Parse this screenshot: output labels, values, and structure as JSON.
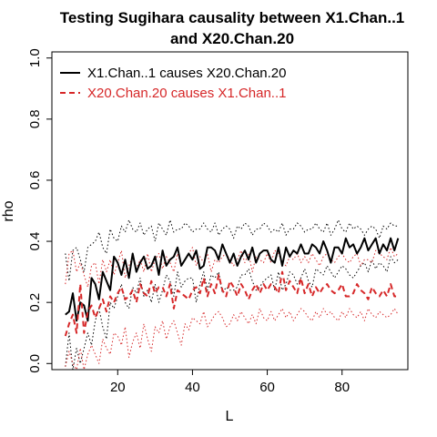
{
  "chart_data": {
    "type": "line",
    "title_lines": [
      "Testing Sugihara causality between  X1.Chan..1",
      "and X20.Chan.20"
    ],
    "xlabel": "L",
    "ylabel": "rho",
    "xlim": [
      2.4,
      97.6
    ],
    "ylim": [
      -0.02,
      1.02
    ],
    "xticks": [
      20,
      40,
      60,
      80
    ],
    "yticks": [
      0.0,
      0.2,
      0.4,
      0.6,
      0.8,
      1.0
    ],
    "xtick_labels": [
      "20",
      "40",
      "60",
      "80"
    ],
    "ytick_labels": [
      "0.0",
      "0.2",
      "0.4",
      "0.6",
      "0.8",
      "1.0"
    ],
    "legend": {
      "placement": "top-left",
      "entries": [
        {
          "label": "X1.Chan..1 causes X20.Chan.20",
          "color": "#000000",
          "dash": "solid"
        },
        {
          "label": "X20.Chan.20 causes X1.Chan..1",
          "color": "#d62728",
          "dash": "dashed"
        }
      ]
    },
    "x": [
      6,
      7,
      8,
      9,
      10,
      11,
      12,
      13,
      14,
      15,
      16,
      17,
      18,
      19,
      20,
      21,
      22,
      23,
      24,
      25,
      26,
      27,
      28,
      29,
      30,
      31,
      32,
      33,
      34,
      35,
      36,
      37,
      38,
      39,
      40,
      41,
      42,
      43,
      44,
      45,
      46,
      47,
      48,
      49,
      50,
      51,
      52,
      53,
      54,
      55,
      56,
      57,
      58,
      59,
      60,
      61,
      62,
      63,
      64,
      65,
      66,
      67,
      68,
      69,
      70,
      71,
      72,
      73,
      74,
      75,
      76,
      77,
      78,
      79,
      80,
      81,
      82,
      83,
      84,
      85,
      86,
      87,
      88,
      89,
      90,
      91,
      92,
      93,
      94,
      95
    ],
    "series": [
      {
        "name": "X1.Chan..1 causes X20.Chan.20",
        "color": "#000000",
        "dash": "solid",
        "width": 2,
        "values": [
          0.16,
          0.17,
          0.23,
          0.14,
          0.2,
          0.19,
          0.14,
          0.28,
          0.26,
          0.21,
          0.3,
          0.27,
          0.24,
          0.35,
          0.33,
          0.29,
          0.34,
          0.28,
          0.36,
          0.3,
          0.33,
          0.35,
          0.31,
          0.32,
          0.35,
          0.29,
          0.37,
          0.32,
          0.34,
          0.35,
          0.38,
          0.32,
          0.34,
          0.36,
          0.34,
          0.37,
          0.31,
          0.32,
          0.38,
          0.38,
          0.37,
          0.34,
          0.39,
          0.36,
          0.33,
          0.36,
          0.32,
          0.35,
          0.37,
          0.34,
          0.38,
          0.33,
          0.36,
          0.37,
          0.37,
          0.34,
          0.33,
          0.38,
          0.32,
          0.38,
          0.35,
          0.37,
          0.36,
          0.39,
          0.36,
          0.36,
          0.39,
          0.38,
          0.36,
          0.4,
          0.37,
          0.33,
          0.38,
          0.38,
          0.36,
          0.41,
          0.38,
          0.39,
          0.36,
          0.38,
          0.41,
          0.37,
          0.39,
          0.41,
          0.36,
          0.39,
          0.37,
          0.41,
          0.37,
          0.41
        ]
      },
      {
        "name": "X1 causes X20 upper bound",
        "color": "#000000",
        "dash": "dotted",
        "width": 1,
        "values": [
          0.36,
          0.27,
          0.37,
          0.38,
          0.34,
          0.3,
          0.38,
          0.39,
          0.4,
          0.43,
          0.38,
          0.36,
          0.44,
          0.41,
          0.4,
          0.45,
          0.43,
          0.47,
          0.44,
          0.43,
          0.46,
          0.42,
          0.44,
          0.45,
          0.4,
          0.46,
          0.44,
          0.42,
          0.47,
          0.43,
          0.44,
          0.44,
          0.46,
          0.45,
          0.43,
          0.44,
          0.44,
          0.46,
          0.44,
          0.43,
          0.46,
          0.42,
          0.44,
          0.45,
          0.44,
          0.41,
          0.45,
          0.44,
          0.46,
          0.45,
          0.42,
          0.44,
          0.44,
          0.46,
          0.45,
          0.43,
          0.44,
          0.43,
          0.46,
          0.42,
          0.44,
          0.44,
          0.46,
          0.45,
          0.43,
          0.44,
          0.44,
          0.46,
          0.44,
          0.43,
          0.46,
          0.42,
          0.44,
          0.47,
          0.44,
          0.43,
          0.46,
          0.44,
          0.45,
          0.44,
          0.42,
          0.44,
          0.45,
          0.44,
          0.41,
          0.45,
          0.44,
          0.46,
          0.45,
          0.45
        ]
      },
      {
        "name": "X1 causes X20 lower bound",
        "color": "#000000",
        "dash": "dotted",
        "width": 1,
        "values": [
          -0.01,
          0.1,
          -0.02,
          0.05,
          0.0,
          0.05,
          0.1,
          0.06,
          0.14,
          0.18,
          0.12,
          0.08,
          0.2,
          0.18,
          0.22,
          0.26,
          0.2,
          0.18,
          0.25,
          0.23,
          0.28,
          0.22,
          0.24,
          0.2,
          0.26,
          0.2,
          0.24,
          0.29,
          0.27,
          0.22,
          0.3,
          0.25,
          0.27,
          0.28,
          0.28,
          0.2,
          0.26,
          0.3,
          0.24,
          0.29,
          0.28,
          0.3,
          0.23,
          0.25,
          0.24,
          0.24,
          0.25,
          0.29,
          0.29,
          0.31,
          0.27,
          0.24,
          0.25,
          0.27,
          0.28,
          0.29,
          0.24,
          0.3,
          0.24,
          0.26,
          0.3,
          0.29,
          0.26,
          0.28,
          0.31,
          0.27,
          0.25,
          0.31,
          0.3,
          0.29,
          0.32,
          0.3,
          0.28,
          0.3,
          0.32,
          0.31,
          0.29,
          0.28,
          0.3,
          0.32,
          0.33,
          0.3,
          0.34,
          0.31,
          0.33,
          0.32,
          0.3,
          0.35,
          0.33,
          0.34
        ]
      },
      {
        "name": "X20.Chan.20 causes X1.Chan..1",
        "color": "#d62728",
        "dash": "dashed",
        "width": 2,
        "values": [
          0.09,
          0.13,
          0.16,
          0.1,
          0.26,
          0.1,
          0.17,
          0.19,
          0.15,
          0.18,
          0.21,
          0.17,
          0.22,
          0.2,
          0.23,
          0.25,
          0.21,
          0.22,
          0.24,
          0.2,
          0.26,
          0.23,
          0.22,
          0.27,
          0.23,
          0.25,
          0.25,
          0.22,
          0.26,
          0.18,
          0.24,
          0.23,
          0.22,
          0.21,
          0.24,
          0.25,
          0.23,
          0.28,
          0.22,
          0.26,
          0.23,
          0.29,
          0.24,
          0.22,
          0.27,
          0.25,
          0.22,
          0.26,
          0.24,
          0.21,
          0.24,
          0.26,
          0.23,
          0.26,
          0.24,
          0.26,
          0.25,
          0.23,
          0.3,
          0.24,
          0.27,
          0.25,
          0.23,
          0.28,
          0.23,
          0.26,
          0.22,
          0.25,
          0.23,
          0.25,
          0.26,
          0.24,
          0.23,
          0.24,
          0.26,
          0.22,
          0.22,
          0.23,
          0.26,
          0.24,
          0.23,
          0.21,
          0.25,
          0.23,
          0.22,
          0.24,
          0.22,
          0.26,
          0.22,
          0.22
        ]
      },
      {
        "name": "X20 causes X1 upper bound",
        "color": "#d62728",
        "dash": "dotted",
        "width": 1,
        "values": [
          0.26,
          0.36,
          0.37,
          0.3,
          0.33,
          0.29,
          0.25,
          0.32,
          0.33,
          0.26,
          0.34,
          0.3,
          0.34,
          0.29,
          0.33,
          0.37,
          0.28,
          0.32,
          0.35,
          0.31,
          0.34,
          0.3,
          0.36,
          0.3,
          0.34,
          0.36,
          0.31,
          0.35,
          0.33,
          0.3,
          0.36,
          0.32,
          0.34,
          0.36,
          0.38,
          0.32,
          0.35,
          0.33,
          0.36,
          0.3,
          0.34,
          0.33,
          0.35,
          0.36,
          0.34,
          0.32,
          0.34,
          0.37,
          0.33,
          0.36,
          0.3,
          0.35,
          0.34,
          0.33,
          0.36,
          0.33,
          0.37,
          0.36,
          0.33,
          0.32,
          0.35,
          0.34,
          0.36,
          0.33,
          0.35,
          0.33,
          0.36,
          0.34,
          0.32,
          0.35,
          0.36,
          0.34,
          0.33,
          0.35,
          0.36,
          0.34,
          0.33,
          0.35,
          0.36,
          0.32,
          0.34,
          0.34,
          0.33,
          0.37,
          0.36,
          0.35,
          0.34,
          0.38,
          0.35,
          0.36
        ]
      },
      {
        "name": "X20 causes X1 lower bound",
        "color": "#d62728",
        "dash": "dotted",
        "width": 1,
        "values": [
          -0.01,
          0.04,
          0.0,
          -0.02,
          0.05,
          -0.02,
          0.03,
          0.06,
          0.03,
          0.0,
          0.08,
          0.05,
          0.03,
          0.1,
          0.09,
          0.06,
          0.12,
          0.02,
          0.07,
          0.1,
          0.05,
          0.13,
          0.08,
          0.04,
          0.12,
          0.1,
          0.14,
          0.08,
          0.12,
          0.14,
          0.1,
          0.06,
          0.13,
          0.11,
          0.15,
          0.14,
          0.13,
          0.17,
          0.12,
          0.14,
          0.16,
          0.17,
          0.15,
          0.12,
          0.13,
          0.16,
          0.14,
          0.17,
          0.15,
          0.13,
          0.16,
          0.13,
          0.18,
          0.15,
          0.14,
          0.17,
          0.14,
          0.16,
          0.18,
          0.15,
          0.17,
          0.14,
          0.16,
          0.18,
          0.17,
          0.15,
          0.14,
          0.17,
          0.15,
          0.18,
          0.16,
          0.17,
          0.15,
          0.14,
          0.17,
          0.15,
          0.18,
          0.16,
          0.15,
          0.17,
          0.14,
          0.18,
          0.16,
          0.15,
          0.17,
          0.16,
          0.15,
          0.16,
          0.18,
          0.16
        ]
      }
    ]
  }
}
